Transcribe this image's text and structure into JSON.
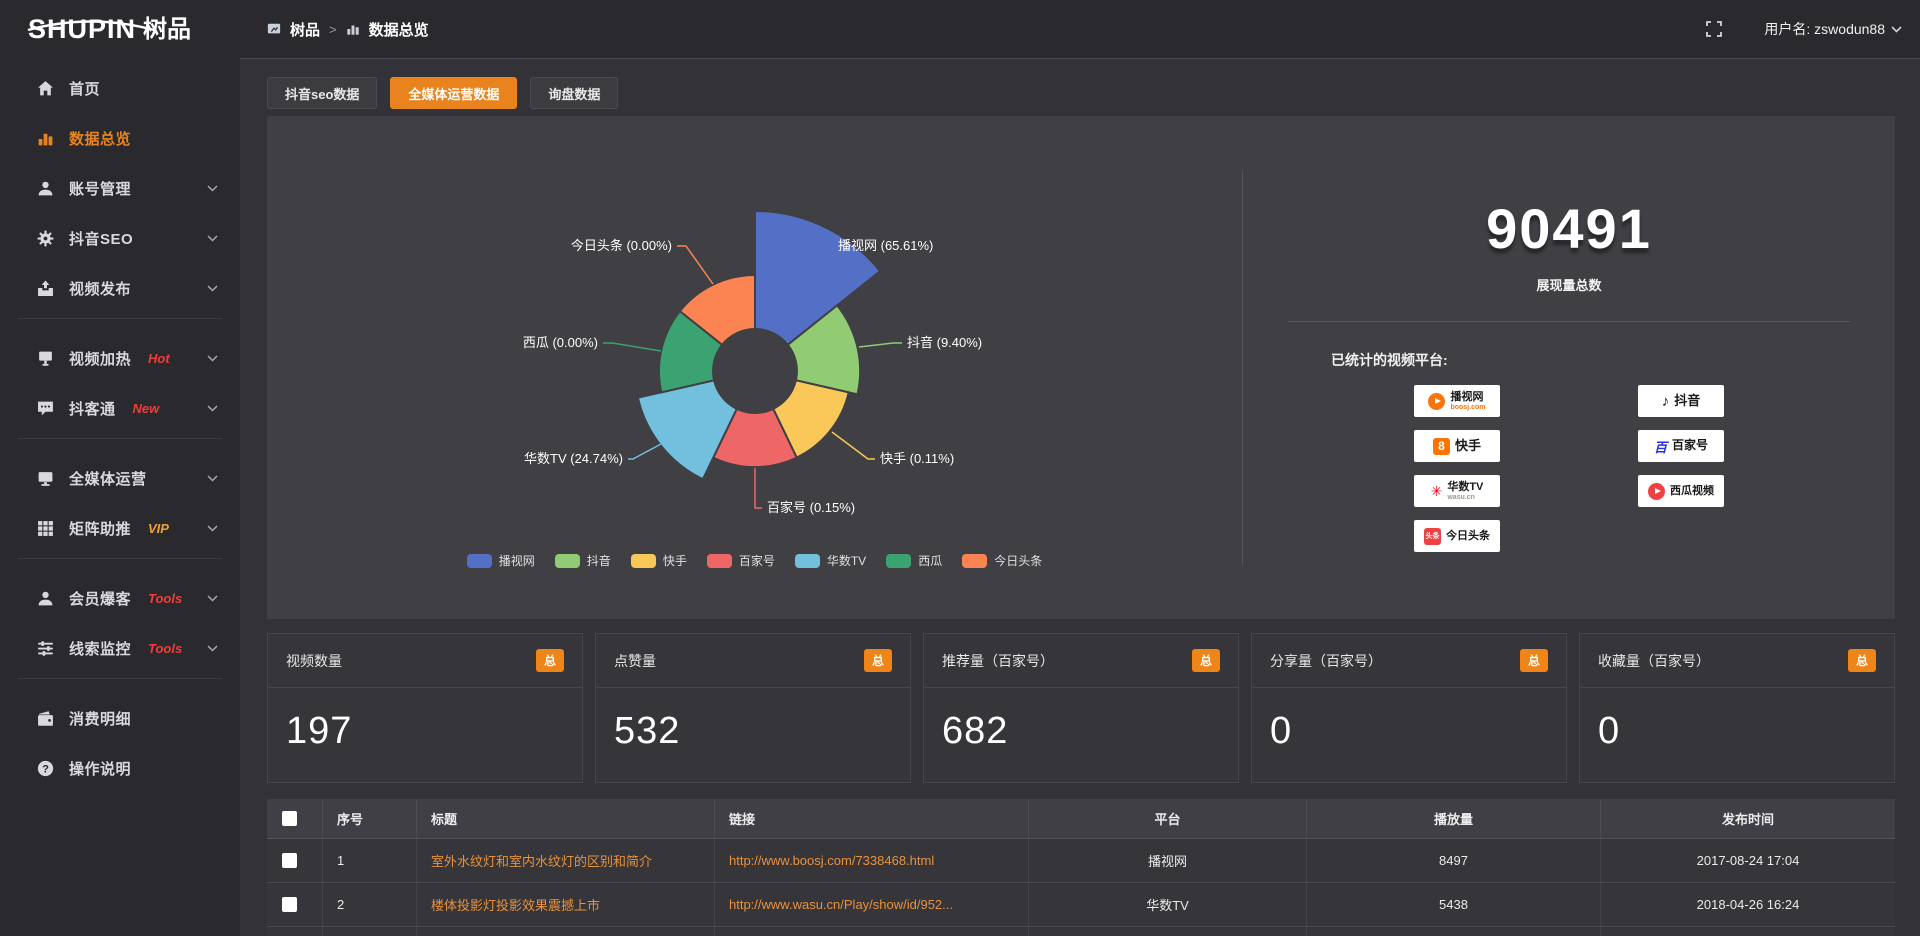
{
  "colors": {
    "accent_orange": "#e8831d",
    "badge_red": "#f23c3c",
    "badge_gold": "#f0a32f",
    "topbar_bg": "#2a2a2e",
    "panel_bg": "#3f3f44",
    "link_orange": "#ea923c"
  },
  "topbar": {
    "logo_en": "SHUPIN",
    "logo_cn": "树品",
    "breadcrumb_root": "树品",
    "breadcrumb_sep": ">",
    "breadcrumb_current": "数据总览",
    "user_label": "用户名: zswodun88"
  },
  "sidebar": {
    "items": [
      {
        "label": "首页",
        "icon": "home"
      },
      {
        "label": "数据总览",
        "icon": "bar-chart",
        "active": true
      },
      {
        "label": "账号管理",
        "icon": "user"
      },
      {
        "label": "抖音SEO",
        "icon": "gear"
      },
      {
        "label": "视频发布",
        "icon": "upload"
      },
      {
        "label": "视频加热",
        "icon": "screen",
        "badge": "Hot"
      },
      {
        "label": "抖客通",
        "icon": "comment",
        "badge": "New"
      },
      {
        "label": "全媒体运营",
        "icon": "monitor"
      },
      {
        "label": "矩阵助推",
        "icon": "grid",
        "badge": "VIP"
      },
      {
        "label": "会员爆客",
        "icon": "person",
        "badge": "Tools"
      },
      {
        "label": "线索监控",
        "icon": "sliders",
        "badge": "Tools"
      },
      {
        "label": "消费明细",
        "icon": "wallet"
      },
      {
        "label": "操作说明",
        "icon": "question"
      }
    ]
  },
  "tabs": [
    {
      "label": "抖音seo数据"
    },
    {
      "label": "全媒体运营数据",
      "active": true
    },
    {
      "label": "询盘数据"
    }
  ],
  "chart_data": {
    "type": "pie",
    "subtype": "nightingale-rose",
    "categories": [
      "播视网",
      "抖音",
      "快手",
      "百家号",
      "华数TV",
      "西瓜",
      "今日头条"
    ],
    "values_percent": [
      65.61,
      9.4,
      0.11,
      0.15,
      24.74,
      0.0,
      0.0
    ],
    "labels": [
      "播视网 (65.61%)",
      "抖音 (9.40%)",
      "快手 (0.11%)",
      "百家号 (0.15%)",
      "华数TV (24.74%)",
      "西瓜 (0.00%)",
      "今日头条 (0.00%)"
    ],
    "colors": [
      "#5470c6",
      "#91cc75",
      "#fac858",
      "#ee6666",
      "#73c0de",
      "#3ba272",
      "#fc8452"
    ],
    "legend": [
      "播视网",
      "抖音",
      "快手",
      "百家号",
      "华数TV",
      "西瓜",
      "今日头条"
    ],
    "legend_position": "bottom",
    "grid": false
  },
  "summary": {
    "total": "90491",
    "total_caption": "展现量总数",
    "platforms_title": "已统计的视频平台:",
    "platforms": [
      {
        "name": "播视网",
        "sub": "boosj.com"
      },
      {
        "name": "快手"
      },
      {
        "name": "华数TV",
        "sub": "wasu.cn"
      },
      {
        "name": "今日头条"
      },
      {
        "name": "抖音"
      },
      {
        "name": "百家号"
      },
      {
        "name": "西瓜视频"
      }
    ]
  },
  "stat_cards": [
    {
      "title": "视频数量",
      "badge": "总",
      "value": "197"
    },
    {
      "title": "点赞量",
      "badge": "总",
      "value": "532"
    },
    {
      "title": "推荐量（百家号）",
      "badge": "总",
      "value": "682"
    },
    {
      "title": "分享量（百家号）",
      "badge": "总",
      "value": "0"
    },
    {
      "title": "收藏量（百家号）",
      "badge": "总",
      "value": "0"
    }
  ],
  "table": {
    "columns": [
      "序号",
      "标题",
      "链接",
      "平台",
      "播放量",
      "发布时间"
    ],
    "rows": [
      {
        "no": "1",
        "title": "室外水纹灯和室内水纹灯的区别和简介",
        "link": "http://www.boosj.com/7338468.html",
        "platform": "播视网",
        "plays": "8497",
        "time": "2017-08-24 17:04"
      },
      {
        "no": "2",
        "title": "楼体投影灯投影效果震撼上市",
        "link": "http://www.wasu.cn/Play/show/id/952...",
        "platform": "华数TV",
        "plays": "5438",
        "time": "2018-04-26 16:24"
      }
    ]
  }
}
